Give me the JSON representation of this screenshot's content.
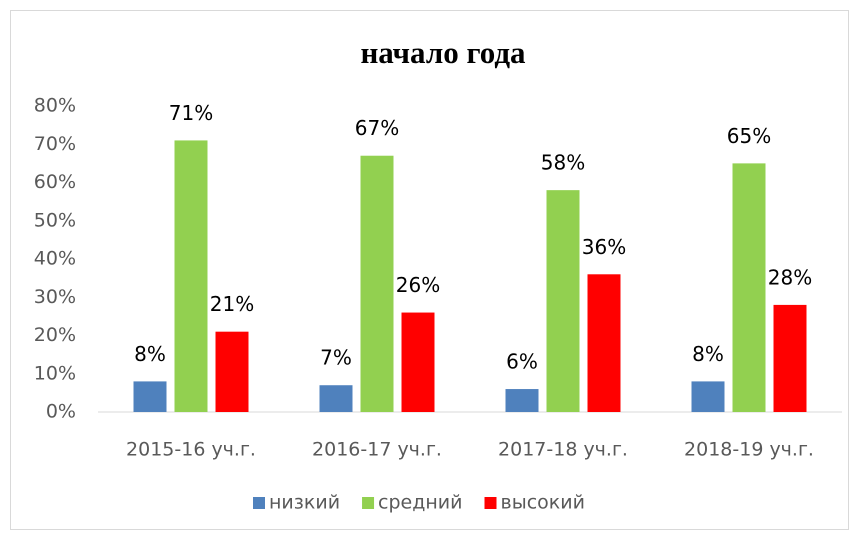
{
  "chart_data": {
    "type": "bar",
    "title": "начало года",
    "categories": [
      "2015-16 уч.г.",
      "2016-17 уч.г.",
      "2017-18 уч.г.",
      "2018-19 уч.г."
    ],
    "series": [
      {
        "name": "низкий",
        "color": "#4f81bd",
        "values": [
          8,
          7,
          6,
          8
        ],
        "value_labels": [
          "8%",
          "7%",
          "6%",
          "8%"
        ]
      },
      {
        "name": "средний",
        "color": "#92d050",
        "values": [
          71,
          67,
          58,
          65
        ],
        "value_labels": [
          "71%",
          "67%",
          "58%",
          "65%"
        ]
      },
      {
        "name": "высокий",
        "color": "#ff0000",
        "values": [
          21,
          26,
          36,
          28
        ],
        "value_labels": [
          "21%",
          "26%",
          "36%",
          "28%"
        ]
      }
    ],
    "ylim": [
      0,
      80
    ],
    "yticks": [
      {
        "value": 0,
        "label": "0%"
      },
      {
        "value": 10,
        "label": "10%"
      },
      {
        "value": 20,
        "label": "20%"
      },
      {
        "value": 30,
        "label": "30%"
      },
      {
        "value": 40,
        "label": "40%"
      },
      {
        "value": 50,
        "label": "50%"
      },
      {
        "value": 60,
        "label": "60%"
      },
      {
        "value": 70,
        "label": "70%"
      },
      {
        "value": 80,
        "label": "80%"
      }
    ],
    "grid": false,
    "legend": "bottom"
  }
}
